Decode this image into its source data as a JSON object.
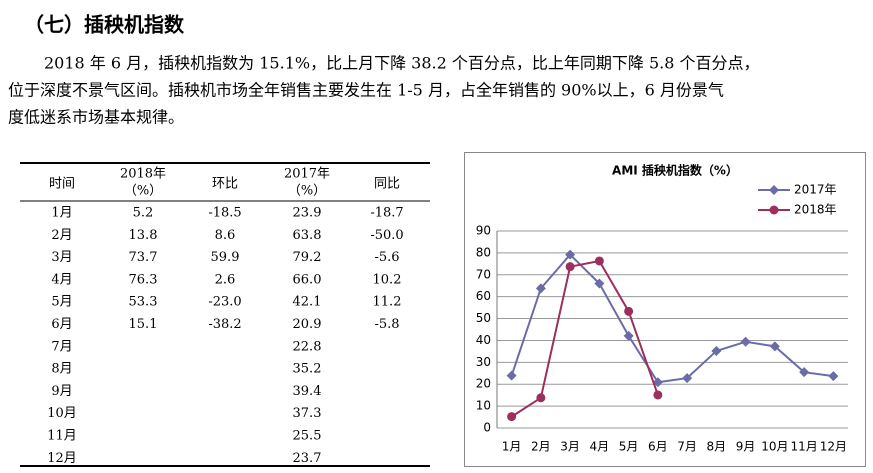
{
  "heading": "（七）插秧机指数",
  "paragraph_lines": [
    "2018 年 6 月，插秧机指数为 15.1%，比上月下降 38.2 个百分点，比上年同期下降 5.8 个百分点，",
    "位于深度不景气区间。插秧机市场全年销售主要发生在 1-5 月，占全年销售的 90%以上，6 月份景气",
    "度低迷系市场基本规律。"
  ],
  "table": {
    "header": [
      "时间",
      [
        "2018年",
        "（%）"
      ],
      "环比",
      [
        "2017年",
        "（%）"
      ],
      "同比"
    ],
    "rows": [
      [
        "1月",
        "5.2",
        "-18.5",
        "23.9",
        "-18.7"
      ],
      [
        "2月",
        "13.8",
        "8.6",
        "63.8",
        "-50.0"
      ],
      [
        "3月",
        "73.7",
        "59.9",
        "79.2",
        "-5.6"
      ],
      [
        "4月",
        "76.3",
        "2.6",
        "66.0",
        "10.2"
      ],
      [
        "5月",
        "53.3",
        "-23.0",
        "42.1",
        "11.2"
      ],
      [
        "6月",
        "15.1",
        "-38.2",
        "20.9",
        "-5.8"
      ],
      [
        "7月",
        null,
        null,
        "22.8",
        null
      ],
      [
        "8月",
        null,
        null,
        "35.2",
        null
      ],
      [
        "9月",
        null,
        null,
        "39.4",
        null
      ],
      [
        "10月",
        null,
        null,
        "37.3",
        null
      ],
      [
        "11月",
        null,
        null,
        "25.5",
        null
      ],
      [
        "12月",
        null,
        null,
        "23.7",
        null
      ]
    ]
  },
  "chart_data": {
    "type": "line",
    "title": "AMI 插秧机指数（%）",
    "categories": [
      "1月",
      "2月",
      "3月",
      "4月",
      "5月",
      "6月",
      "7月",
      "8月",
      "9月",
      "10月",
      "11月",
      "12月"
    ],
    "series": [
      {
        "name": "2017年",
        "color": "#6b6ba8",
        "marker": "diamond",
        "values": [
          23.9,
          63.8,
          79.2,
          66.0,
          42.1,
          20.9,
          22.8,
          35.2,
          39.4,
          37.3,
          25.5,
          23.7
        ]
      },
      {
        "name": "2018年",
        "color": "#9c2f5e",
        "marker": "circle",
        "values": [
          5.2,
          13.8,
          73.7,
          76.3,
          53.3,
          15.1,
          null,
          null,
          null,
          null,
          null,
          null
        ]
      }
    ],
    "ylim": [
      0,
      90
    ],
    "yticks": [
      0,
      10,
      20,
      30,
      40,
      50,
      60,
      70,
      80,
      90
    ],
    "grid": true,
    "legend": "top-right"
  }
}
